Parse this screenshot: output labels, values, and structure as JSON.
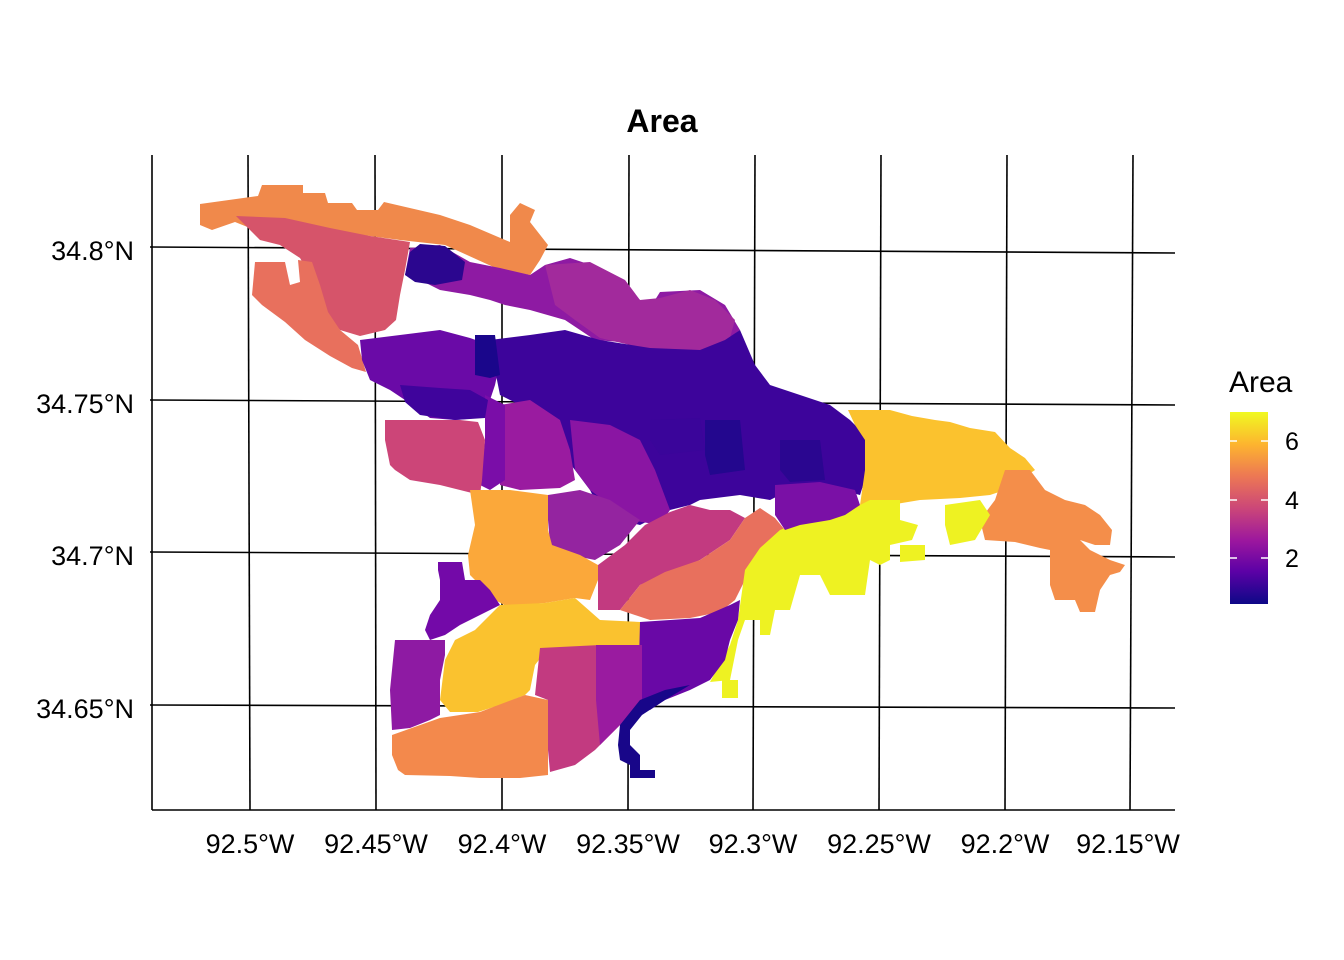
{
  "map": {
    "title": "Area",
    "x_ticks": [
      "92.5°W",
      "92.45°W",
      "92.4°W",
      "92.35°W",
      "92.3°W",
      "92.25°W",
      "92.2°W",
      "92.15°W"
    ],
    "y_ticks": [
      "34.8°N",
      "34.75°N",
      "34.7°N",
      "34.65°N"
    ]
  },
  "legend": {
    "title": "Area",
    "labels": [
      "6",
      "4",
      "2"
    ],
    "colormap": "plasma",
    "range": [
      0.4,
      7.3
    ],
    "colors": [
      "#0d0887",
      "#5c01a6",
      "#9c179e",
      "#cc4778",
      "#ed7953",
      "#fdb42f",
      "#f0f921"
    ]
  },
  "chart_data": {
    "type": "choropleth",
    "title": "Area",
    "variable": "Area",
    "x_ticks": [
      "92.5°W",
      "92.45°W",
      "92.4°W",
      "92.35°W",
      "92.3°W",
      "92.25°W",
      "92.2°W",
      "92.15°W"
    ],
    "y_ticks": [
      "34.8°N",
      "34.75°N",
      "34.7°N",
      "34.65°N"
    ],
    "color_scale": {
      "min": 0.4,
      "max": 7.3,
      "palette": "plasma",
      "legend_ticks": [
        2,
        4,
        6
      ]
    },
    "grid": true,
    "legend_position": "right"
  }
}
